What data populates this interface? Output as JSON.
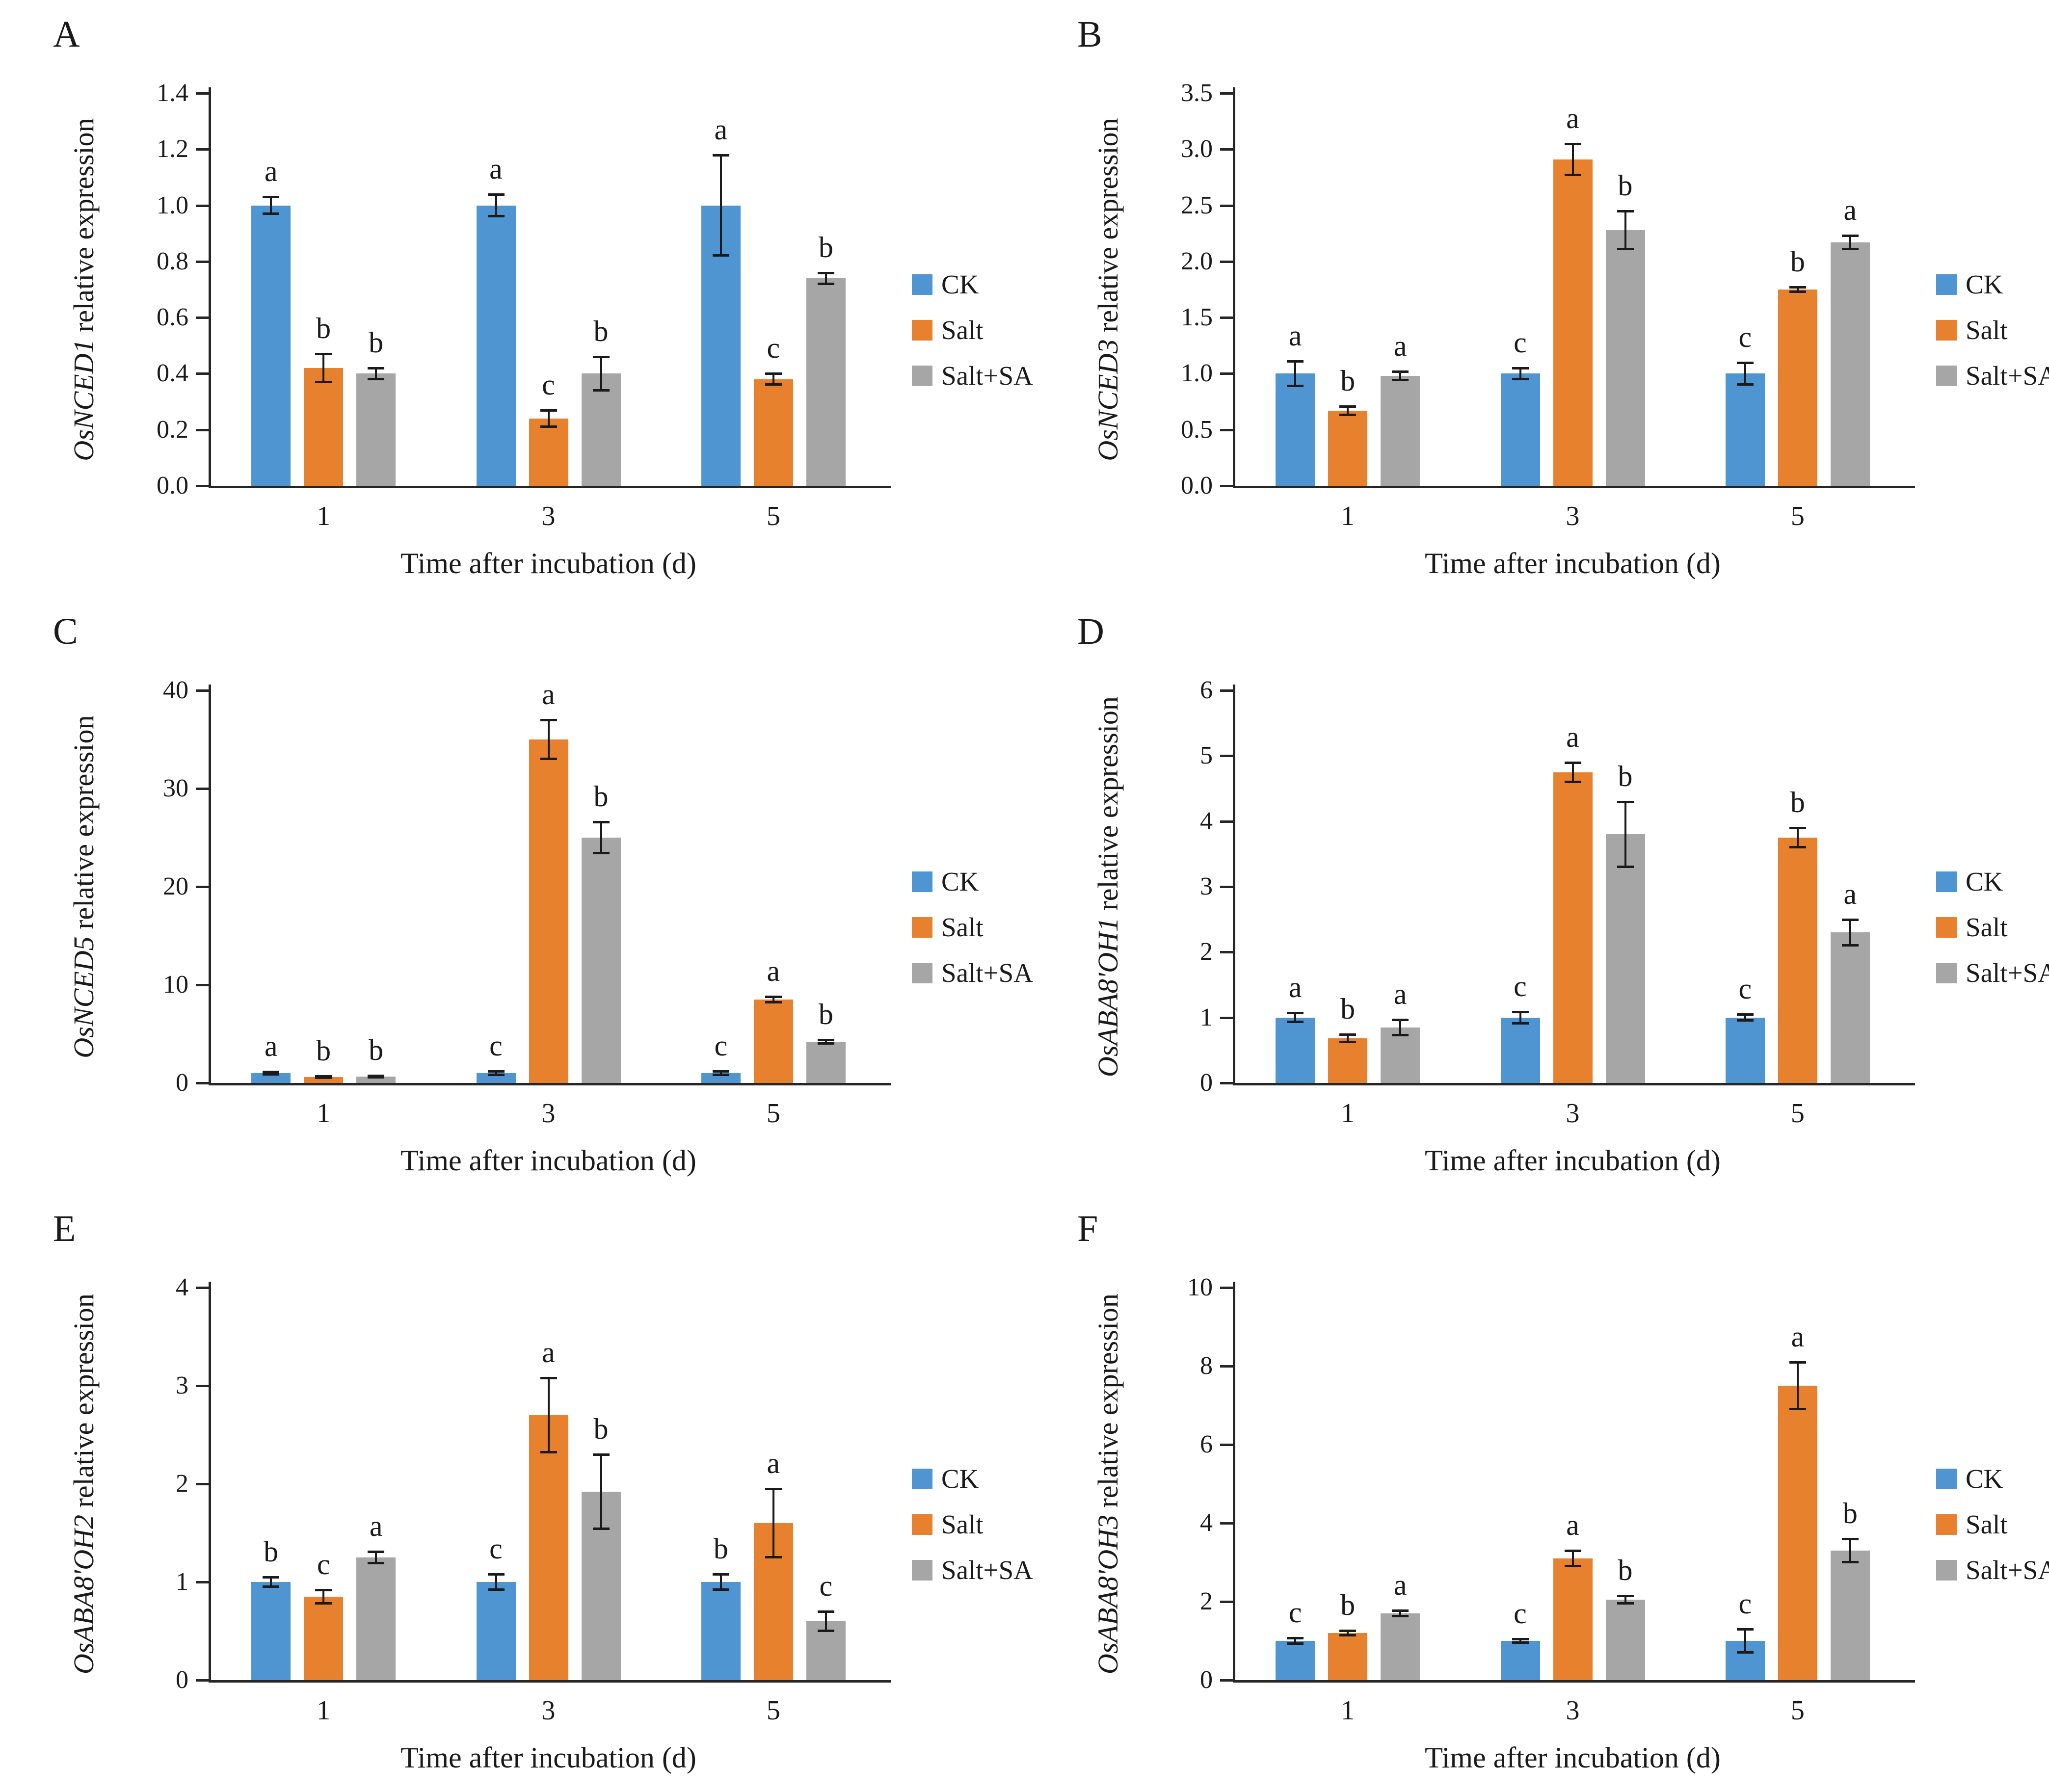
{
  "figure": {
    "xlabel": "Time after incubation (d)",
    "ylabel_suffix": " relative expression",
    "categories": [
      "1",
      "3",
      "5"
    ],
    "legend": [
      {
        "key": "ck",
        "label": "CK"
      },
      {
        "key": "salt",
        "label": "Salt"
      },
      {
        "key": "salt_sa",
        "label": "Salt+SA"
      }
    ],
    "colors": {
      "ck": "#4E95D2",
      "salt": "#E8812E",
      "salt_sa": "#A6A6A6",
      "axis": "#262626",
      "error_bar": "#1a1a1a",
      "text": "#1a1a1a"
    }
  },
  "chart_data": [
    {
      "type": "bar",
      "panel": "A",
      "gene": "OsNCED1",
      "title": "OsNCED1 relative expression",
      "xlabel": "Time after incubation (d)",
      "ylabel": "OsNCED1 relative expression",
      "ylim": [
        0,
        1.4
      ],
      "ystep": 0.2,
      "decimals": 1,
      "categories": [
        "1",
        "3",
        "5"
      ],
      "series": [
        {
          "name": "CK",
          "color_key": "ck",
          "values": [
            1.0,
            1.0,
            1.0
          ],
          "errors": [
            0.03,
            0.04,
            0.18
          ],
          "letters": [
            "a",
            "a",
            "a"
          ]
        },
        {
          "name": "Salt",
          "color_key": "salt",
          "values": [
            0.42,
            0.24,
            0.38
          ],
          "errors": [
            0.05,
            0.03,
            0.02
          ],
          "letters": [
            "b",
            "c",
            "c"
          ]
        },
        {
          "name": "Salt+SA",
          "color_key": "salt_sa",
          "values": [
            0.4,
            0.4,
            0.74
          ],
          "errors": [
            0.02,
            0.06,
            0.02
          ],
          "letters": [
            "b",
            "b",
            "b"
          ]
        }
      ]
    },
    {
      "type": "bar",
      "panel": "B",
      "gene": "OsNCED3",
      "title": "OsNCED3 relative expression",
      "xlabel": "Time after incubation (d)",
      "ylabel": "OsNCED3 relative expression",
      "ylim": [
        0,
        3.5
      ],
      "ystep": 0.5,
      "decimals": 1,
      "categories": [
        "1",
        "3",
        "5"
      ],
      "series": [
        {
          "name": "CK",
          "color_key": "ck",
          "values": [
            1.0,
            1.0,
            1.0
          ],
          "errors": [
            0.11,
            0.05,
            0.1
          ],
          "letters": [
            "a",
            "c",
            "c"
          ]
        },
        {
          "name": "Salt",
          "color_key": "salt",
          "values": [
            0.67,
            2.91,
            1.75
          ],
          "errors": [
            0.04,
            0.14,
            0.02
          ],
          "letters": [
            "b",
            "a",
            "b"
          ]
        },
        {
          "name": "Salt+SA",
          "color_key": "salt_sa",
          "values": [
            0.98,
            2.28,
            2.17
          ],
          "errors": [
            0.04,
            0.17,
            0.06
          ],
          "letters": [
            "a",
            "b",
            "a"
          ]
        }
      ]
    },
    {
      "type": "bar",
      "panel": "C",
      "gene": "OsNCED5",
      "title": "OsNCED5 relative expression",
      "xlabel": "Time after incubation (d)",
      "ylabel": "OsNCED5 relative expression",
      "ylim": [
        0,
        40
      ],
      "ystep": 10,
      "decimals": 0,
      "categories": [
        "1",
        "3",
        "5"
      ],
      "series": [
        {
          "name": "CK",
          "color_key": "ck",
          "values": [
            1.0,
            1.0,
            1.0
          ],
          "errors": [
            0.15,
            0.2,
            0.2
          ],
          "letters": [
            "a",
            "c",
            "c"
          ]
        },
        {
          "name": "Salt",
          "color_key": "salt",
          "values": [
            0.6,
            35.0,
            8.5
          ],
          "errors": [
            0.1,
            2.0,
            0.3
          ],
          "letters": [
            "b",
            "a",
            "a"
          ]
        },
        {
          "name": "Salt+SA",
          "color_key": "salt_sa",
          "values": [
            0.65,
            25.0,
            4.2
          ],
          "errors": [
            0.1,
            1.6,
            0.2
          ],
          "letters": [
            "b",
            "b",
            "b"
          ]
        }
      ]
    },
    {
      "type": "bar",
      "panel": "D",
      "gene": "OsABA8'OH1",
      "title": "OsABA8'OH1 relative expression",
      "xlabel": "Time after incubation (d)",
      "ylabel": "OsABA8'OH1 relative expression",
      "ylim": [
        0,
        6
      ],
      "ystep": 1,
      "decimals": 0,
      "categories": [
        "1",
        "3",
        "5"
      ],
      "series": [
        {
          "name": "CK",
          "color_key": "ck",
          "values": [
            1.0,
            1.0,
            1.0
          ],
          "errors": [
            0.07,
            0.09,
            0.05
          ],
          "letters": [
            "a",
            "c",
            "c"
          ]
        },
        {
          "name": "Salt",
          "color_key": "salt",
          "values": [
            0.68,
            4.75,
            3.75
          ],
          "errors": [
            0.06,
            0.15,
            0.15
          ],
          "letters": [
            "b",
            "a",
            "b"
          ]
        },
        {
          "name": "Salt+SA",
          "color_key": "salt_sa",
          "values": [
            0.85,
            3.8,
            2.3
          ],
          "errors": [
            0.12,
            0.5,
            0.2
          ],
          "letters": [
            "a",
            "b",
            "a"
          ]
        }
      ]
    },
    {
      "type": "bar",
      "panel": "E",
      "gene": "OsABA8'OH2",
      "title": "OsABA8'OH2 relative expression",
      "xlabel": "Time after incubation (d)",
      "ylabel": "OsABA8'OH2 relative expression",
      "ylim": [
        0,
        4
      ],
      "ystep": 1,
      "decimals": 0,
      "categories": [
        "1",
        "3",
        "5"
      ],
      "series": [
        {
          "name": "CK",
          "color_key": "ck",
          "values": [
            1.0,
            1.0,
            1.0
          ],
          "errors": [
            0.05,
            0.08,
            0.08
          ],
          "letters": [
            "b",
            "c",
            "b"
          ]
        },
        {
          "name": "Salt",
          "color_key": "salt",
          "values": [
            0.85,
            2.7,
            1.6
          ],
          "errors": [
            0.07,
            0.38,
            0.35
          ],
          "letters": [
            "c",
            "a",
            "a"
          ]
        },
        {
          "name": "Salt+SA",
          "color_key": "salt_sa",
          "values": [
            1.25,
            1.92,
            0.6
          ],
          "errors": [
            0.06,
            0.38,
            0.1
          ],
          "letters": [
            "a",
            "b",
            "c"
          ]
        }
      ]
    },
    {
      "type": "bar",
      "panel": "F",
      "gene": "OsABA8'OH3",
      "title": "OsABA8'OH3 relative expression",
      "xlabel": "Time after incubation (d)",
      "ylabel": "OsABA8'OH3 relative expression",
      "ylim": [
        0,
        10
      ],
      "ystep": 2,
      "decimals": 0,
      "categories": [
        "1",
        "3",
        "5"
      ],
      "series": [
        {
          "name": "CK",
          "color_key": "ck",
          "values": [
            1.0,
            1.0,
            1.0
          ],
          "errors": [
            0.08,
            0.05,
            0.3
          ],
          "letters": [
            "c",
            "c",
            "c"
          ]
        },
        {
          "name": "Salt",
          "color_key": "salt",
          "values": [
            1.2,
            3.1,
            7.5
          ],
          "errors": [
            0.06,
            0.2,
            0.6
          ],
          "letters": [
            "b",
            "a",
            "a"
          ]
        },
        {
          "name": "Salt+SA",
          "color_key": "salt_sa",
          "values": [
            1.7,
            2.05,
            3.3
          ],
          "errors": [
            0.08,
            0.1,
            0.3
          ],
          "letters": [
            "a",
            "b",
            "b"
          ]
        }
      ]
    }
  ]
}
